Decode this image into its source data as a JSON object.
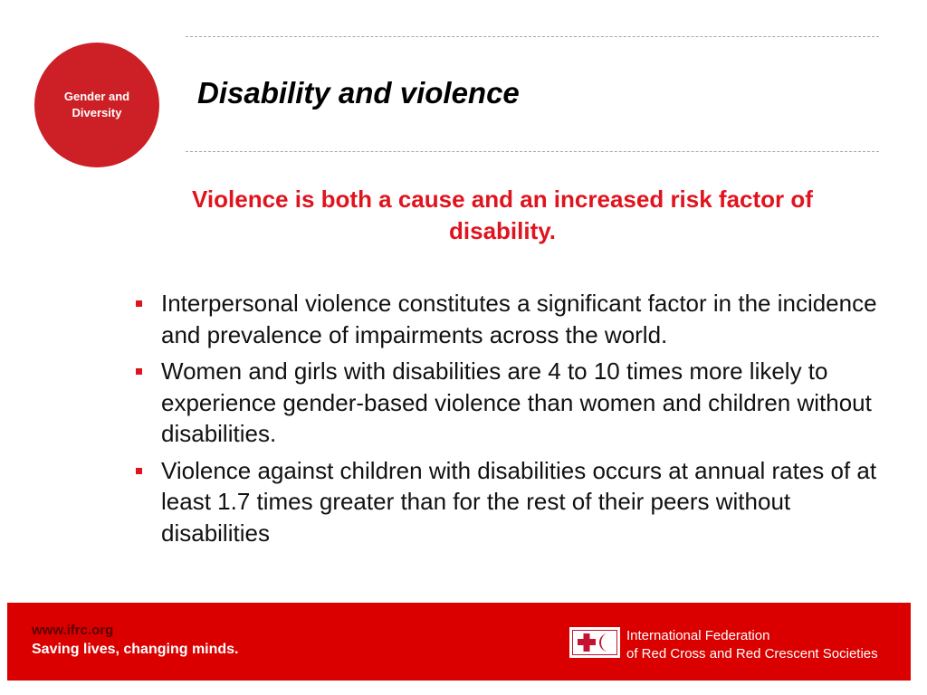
{
  "badge": {
    "line1": "Gender and",
    "line2": "Diversity"
  },
  "title": "Disability and violence",
  "subtitle": "Violence is both a cause and an increased risk factor of disability.",
  "bullets": [
    "Interpersonal violence constitutes a significant factor in the incidence and prevalence of impairments across the world.",
    "Women and girls with disabilities are 4 to 10 times more likely to experience gender-based violence than women and children without disabilities.",
    "Violence against children with disabilities occurs at annual rates of at least 1.7 times greater than for the rest of their peers without disabilities"
  ],
  "footer": {
    "url": "www.ifrc.org",
    "slogan": "Saving lives, changing minds.",
    "org_line1": "International Federation",
    "org_line2": "of Red Cross and Red Crescent Societies",
    "logo_icon": "red-cross-red-crescent-logo"
  },
  "colors": {
    "accent": "#e0141e",
    "badge": "#cc1f26",
    "footer": "#db0000"
  }
}
